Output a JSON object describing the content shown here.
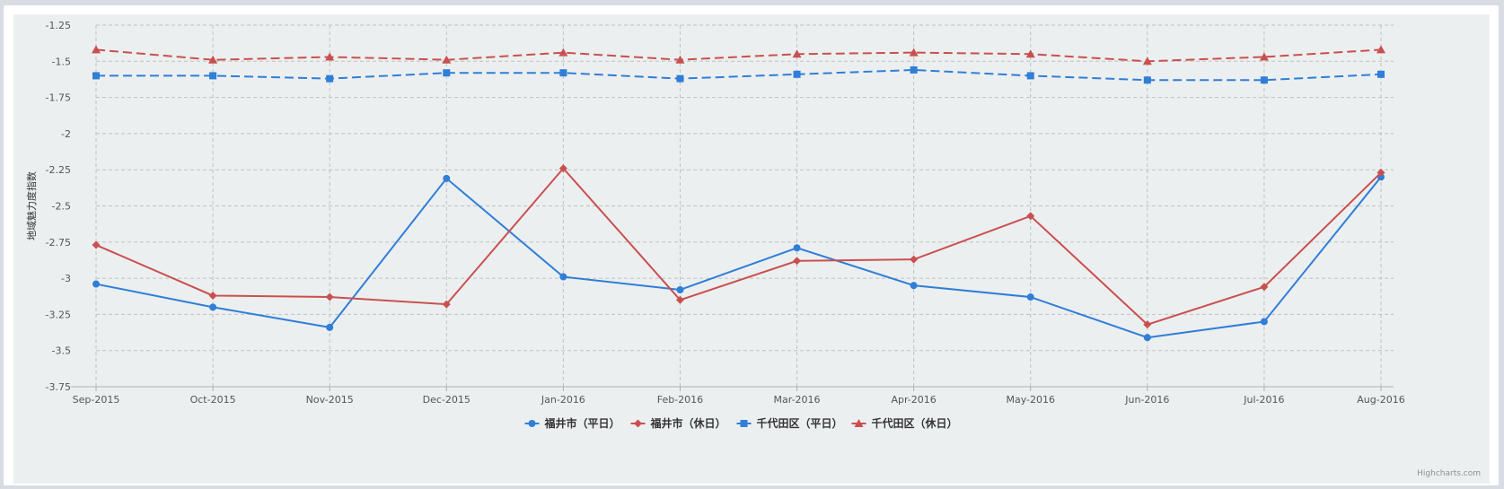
{
  "chart_data": {
    "type": "line",
    "title": "",
    "ylabel": "地域魅力度指数",
    "xlabel": "",
    "categories": [
      "Sep-2015",
      "Oct-2015",
      "Nov-2015",
      "Dec-2015",
      "Jan-2016",
      "Feb-2016",
      "Mar-2016",
      "Apr-2016",
      "May-2016",
      "Jun-2016",
      "Jul-2016",
      "Aug-2016"
    ],
    "ylim": [
      -3.75,
      -1.25
    ],
    "yticks": [
      "-1.25",
      "-1.5",
      "-1.75",
      "-2",
      "-2.25",
      "-2.5",
      "-2.75",
      "-3",
      "-3.25",
      "-3.5",
      "-3.75"
    ],
    "grid": true,
    "legend_position": "bottom-center",
    "series": [
      {
        "name": "福井市（平日）",
        "color": "#2f7ed8",
        "marker": "circle",
        "dash": false,
        "values": [
          -3.04,
          -3.2,
          -3.34,
          -2.31,
          -2.99,
          -3.08,
          -2.79,
          -3.05,
          -3.13,
          -3.41,
          -3.3,
          -2.3
        ]
      },
      {
        "name": "福井市（休日）",
        "color": "#c9504f",
        "marker": "diamond",
        "dash": false,
        "values": [
          -2.77,
          -3.12,
          -3.13,
          -3.18,
          -2.24,
          -3.15,
          -2.88,
          -2.87,
          -2.57,
          -3.32,
          -3.06,
          -2.27
        ]
      },
      {
        "name": "千代田区（平日）",
        "color": "#2f7ed8",
        "marker": "square",
        "dash": true,
        "values": [
          -1.6,
          -1.6,
          -1.62,
          -1.58,
          -1.58,
          -1.62,
          -1.59,
          -1.56,
          -1.6,
          -1.63,
          -1.63,
          -1.59
        ]
      },
      {
        "name": "千代田区（休日）",
        "color": "#c9504f",
        "marker": "triangle",
        "dash": true,
        "values": [
          -1.42,
          -1.49,
          -1.47,
          -1.49,
          -1.44,
          -1.49,
          -1.45,
          -1.44,
          -1.45,
          -1.5,
          -1.47,
          -1.42
        ]
      }
    ],
    "credit": "Highcharts.com"
  }
}
